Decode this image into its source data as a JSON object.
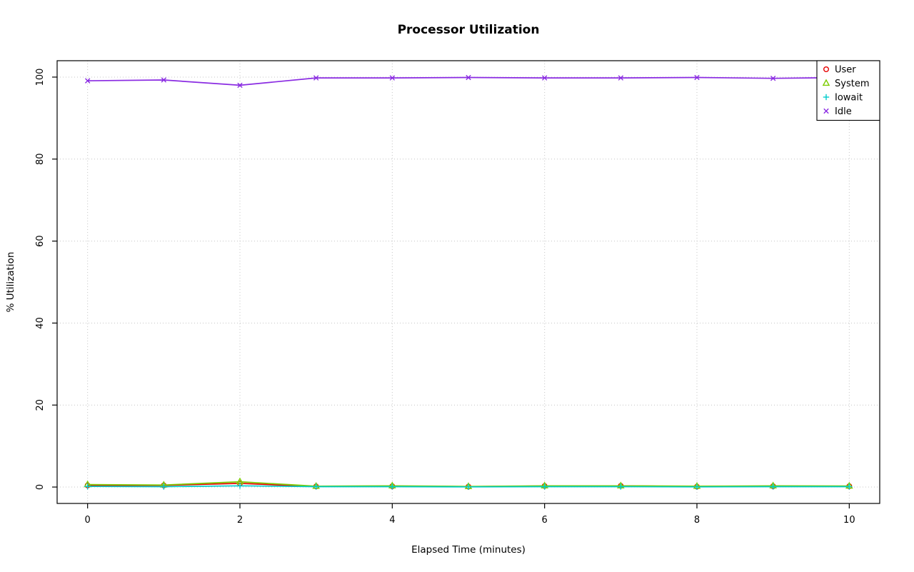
{
  "chart_data": {
    "type": "line",
    "title": "Processor Utilization",
    "xlabel": "Elapsed Time (minutes)",
    "ylabel": "% Utilization",
    "xlim": [
      0,
      10
    ],
    "ylim": [
      0,
      100
    ],
    "xticks": [
      0,
      2,
      4,
      6,
      8,
      10
    ],
    "yticks": [
      0,
      20,
      40,
      60,
      80,
      100
    ],
    "grid": true,
    "grid_style": "dotted",
    "legend_position": "top-right",
    "x": [
      0,
      1,
      2,
      3,
      4,
      5,
      6,
      7,
      8,
      9,
      10
    ],
    "series": [
      {
        "name": "User",
        "marker": "circle",
        "color": "#e60000",
        "values": [
          0.4,
          0.4,
          0.9,
          0.15,
          0.2,
          0.1,
          0.25,
          0.3,
          0.1,
          0.2,
          0.2
        ]
      },
      {
        "name": "System",
        "marker": "triangle",
        "color": "#7ccc00",
        "values": [
          0.6,
          0.5,
          1.3,
          0.2,
          0.3,
          0.15,
          0.3,
          0.3,
          0.2,
          0.3,
          0.25
        ]
      },
      {
        "name": "Iowait",
        "marker": "plus",
        "color": "#00cccc",
        "values": [
          0.15,
          0.1,
          0.3,
          0.1,
          0.1,
          0.05,
          0.1,
          0.1,
          0.05,
          0.1,
          0.1
        ]
      },
      {
        "name": "Idle",
        "marker": "x",
        "color": "#8a2be2",
        "values": [
          99.1,
          99.3,
          98.0,
          99.8,
          99.8,
          99.9,
          99.8,
          99.8,
          99.9,
          99.7,
          99.9
        ]
      }
    ]
  }
}
